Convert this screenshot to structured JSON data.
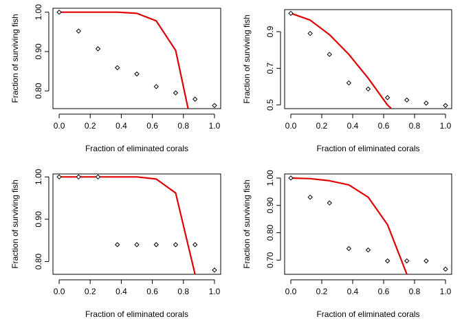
{
  "chart_data": [
    {
      "type": "scatter",
      "xlabel": "Fraction of eliminated corals",
      "ylabel": "Fraction of surviving fish",
      "xlim": [
        0,
        1
      ],
      "ylim": [
        0.755,
        1.01
      ],
      "xticks": [
        0,
        0.2,
        0.4,
        0.6,
        0.8,
        1
      ],
      "xtick_labels": [
        "0.0",
        "0.2",
        "0.4",
        "0.6",
        "0.8",
        "1.0"
      ],
      "yticks": [
        0.8,
        0.9,
        1.0
      ],
      "ytick_labels": [
        "0.80",
        "0.90",
        "1.00"
      ],
      "points": {
        "x": [
          0,
          0.125,
          0.25,
          0.375,
          0.5,
          0.625,
          0.75,
          0.875,
          1.0
        ],
        "y": [
          1.0,
          0.952,
          0.907,
          0.859,
          0.843,
          0.811,
          0.795,
          0.779,
          0.763
        ]
      },
      "curve": {
        "color": "#e00000",
        "x": [
          0,
          0.125,
          0.25,
          0.375,
          0.5,
          0.625,
          0.75,
          0.83
        ],
        "y": [
          1.0,
          1.0,
          1.0,
          1.0,
          0.997,
          0.978,
          0.903,
          0.755
        ]
      }
    },
    {
      "type": "scatter",
      "xlabel": "Fraction of eliminated corals",
      "ylabel": "Fraction of surviving fish",
      "xlim": [
        0,
        1
      ],
      "ylim": [
        0.48,
        1.02
      ],
      "xticks": [
        0,
        0.2,
        0.4,
        0.6,
        0.8,
        1
      ],
      "xtick_labels": [
        "0.0",
        "0.2",
        "0.4",
        "0.6",
        "0.8",
        "1.0"
      ],
      "yticks": [
        0.5,
        0.7,
        0.9
      ],
      "ytick_labels": [
        "0.5",
        "0.7",
        "0.9"
      ],
      "points": {
        "x": [
          0,
          0.125,
          0.25,
          0.375,
          0.5,
          0.625,
          0.75,
          0.875,
          1.0
        ],
        "y": [
          1.0,
          0.89,
          0.776,
          0.62,
          0.587,
          0.54,
          0.527,
          0.51,
          0.497
        ]
      },
      "curve": {
        "color": "#e00000",
        "x": [
          0,
          0.125,
          0.25,
          0.375,
          0.5,
          0.625,
          0.65
        ],
        "y": [
          1.0,
          0.963,
          0.883,
          0.776,
          0.646,
          0.5,
          0.48
        ]
      }
    },
    {
      "type": "scatter",
      "xlabel": "Fraction of eliminated corals",
      "ylabel": "Fraction of surviving fish",
      "xlim": [
        0,
        1
      ],
      "ylim": [
        0.77,
        1.007
      ],
      "xticks": [
        0,
        0.2,
        0.4,
        0.6,
        0.8,
        1
      ],
      "xtick_labels": [
        "0.0",
        "0.2",
        "0.4",
        "0.6",
        "0.8",
        "1.0"
      ],
      "yticks": [
        0.8,
        0.9,
        1.0
      ],
      "ytick_labels": [
        "0.80",
        "0.90",
        "1.00"
      ],
      "points": {
        "x": [
          0,
          0.125,
          0.25,
          0.375,
          0.5,
          0.625,
          0.75,
          0.875,
          1.0
        ],
        "y": [
          1.0,
          1.0,
          1.0,
          0.84,
          0.84,
          0.84,
          0.84,
          0.84,
          0.78
        ]
      },
      "curve": {
        "color": "#e00000",
        "x": [
          0,
          0.125,
          0.25,
          0.375,
          0.5,
          0.625,
          0.75,
          0.875
        ],
        "y": [
          1.0,
          1.0,
          1.0,
          1.0,
          1.0,
          0.995,
          0.962,
          0.77
        ]
      }
    },
    {
      "type": "scatter",
      "xlabel": "Fraction of eliminated corals",
      "ylabel": "Fraction of surviving fish",
      "xlim": [
        0,
        1
      ],
      "ylim": [
        0.648,
        1.015
      ],
      "xticks": [
        0,
        0.2,
        0.4,
        0.6,
        0.8,
        1
      ],
      "xtick_labels": [
        "0.0",
        "0.2",
        "0.4",
        "0.6",
        "0.8",
        "1.0"
      ],
      "yticks": [
        0.7,
        0.8,
        0.9,
        1.0
      ],
      "ytick_labels": [
        "0.70",
        "0.80",
        "0.90",
        "1.00"
      ],
      "points": {
        "x": [
          0,
          0.125,
          0.25,
          0.375,
          0.5,
          0.625,
          0.75,
          0.875,
          1.0
        ],
        "y": [
          1.0,
          0.93,
          0.909,
          0.742,
          0.737,
          0.697,
          0.697,
          0.697,
          0.667
        ]
      },
      "curve": {
        "color": "#e00000",
        "x": [
          0,
          0.125,
          0.25,
          0.375,
          0.5,
          0.625,
          0.75
        ],
        "y": [
          1.0,
          0.998,
          0.99,
          0.975,
          0.93,
          0.83,
          0.648
        ]
      }
    }
  ]
}
